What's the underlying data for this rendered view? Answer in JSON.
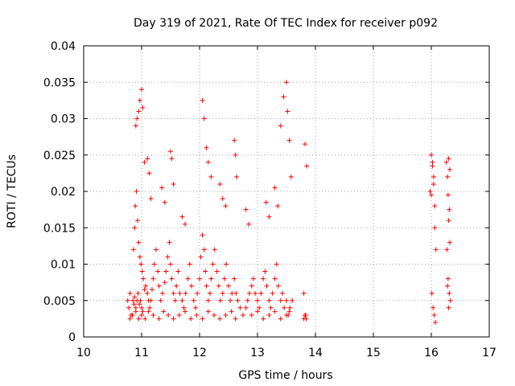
{
  "chart_data": {
    "type": "scatter",
    "title": "Day 319 of 2021, Rate Of TEC Index for receiver p092",
    "xlabel": "GPS time / hours",
    "ylabel": "ROTI / TECUs",
    "xlim": [
      10,
      17
    ],
    "ylim": [
      0,
      0.04
    ],
    "xticks": [
      "10",
      "11",
      "12",
      "13",
      "14",
      "15",
      "16",
      "17"
    ],
    "yticks": [
      "0",
      "0.005",
      "0.01",
      "0.015",
      "0.02",
      "0.025",
      "0.03",
      "0.035",
      "0.04"
    ],
    "grid": true,
    "marker": "+",
    "color": "#ff0000",
    "series": [
      {
        "name": "ROTI",
        "x": [
          10.76,
          10.78,
          10.8,
          10.82,
          10.85,
          10.87,
          10.88,
          10.9,
          10.92,
          10.94,
          10.96,
          10.98,
          11.0,
          11.02,
          10.86,
          10.88,
          10.89,
          10.91,
          10.93,
          10.95,
          10.97,
          10.99,
          11.01,
          11.03,
          11.05,
          11.07,
          11.1,
          11.12,
          11.14,
          11.16,
          11.18,
          11.2,
          11.22,
          11.25,
          11.28,
          11.3,
          11.33,
          11.36,
          11.4,
          11.42,
          11.45,
          11.48,
          11.5,
          11.52,
          11.55,
          11.58,
          11.6,
          11.63,
          11.66,
          11.7,
          11.73,
          11.76,
          11.8,
          11.83,
          11.86,
          11.9,
          11.93,
          11.96,
          12.0,
          12.02,
          12.05,
          12.08,
          12.1,
          12.12,
          12.15,
          12.18,
          12.2,
          12.23,
          12.26,
          12.3,
          12.33,
          12.36,
          12.4,
          12.43,
          12.46,
          12.5,
          12.53,
          12.56,
          12.6,
          12.63,
          12.66,
          12.7,
          12.75,
          12.8,
          12.83,
          12.86,
          12.9,
          12.93,
          12.96,
          13.0,
          13.03,
          13.06,
          13.1,
          13.13,
          13.16,
          13.2,
          13.23,
          13.26,
          13.3,
          13.33,
          13.36,
          13.4,
          13.43,
          13.46,
          13.5,
          13.53,
          13.56,
          13.6,
          13.8,
          13.82,
          13.84,
          10.8,
          10.84,
          10.9,
          10.95,
          11.0,
          11.06,
          11.12,
          11.2,
          11.3,
          11.38,
          11.46,
          11.55,
          11.65,
          11.75,
          11.85,
          11.95,
          12.05,
          12.15,
          12.25,
          12.35,
          12.45,
          12.55,
          12.62,
          12.9,
          13.0,
          13.1,
          13.2,
          13.3,
          13.4,
          13.5,
          13.55,
          13.8,
          13.83,
          15.98,
          16.0,
          16.02,
          16.04,
          16.06,
          16.08,
          16.01,
          16.03,
          16.05,
          16.07,
          16.26,
          16.28,
          16.3,
          16.32,
          16.27,
          16.29,
          16.31,
          16.33,
          16.3,
          16.28,
          10.9,
          10.92,
          10.95,
          10.97,
          11.0,
          11.02,
          11.05,
          12.05,
          12.08,
          12.12,
          12.15,
          12.2,
          13.4,
          13.45,
          13.5,
          13.52,
          13.55,
          13.58,
          11.5,
          11.52,
          11.55,
          12.6,
          12.62,
          12.64,
          16.02,
          16.04,
          16.3,
          16.32,
          11.1,
          11.13,
          11.16,
          12.35,
          12.4,
          12.45,
          13.3,
          13.35,
          13.82,
          13.85,
          13.2,
          13.15,
          11.7,
          11.75,
          12.8,
          12.85,
          11.35,
          11.4,
          16.0,
          16.06,
          16.29,
          16.31
        ],
        "y": [
          0.005,
          0.004,
          0.006,
          0.003,
          0.005,
          0.0045,
          0.0055,
          0.004,
          0.005,
          0.006,
          0.0045,
          0.005,
          0.004,
          0.0035,
          0.012,
          0.015,
          0.018,
          0.02,
          0.016,
          0.013,
          0.011,
          0.01,
          0.009,
          0.008,
          0.0065,
          0.007,
          0.006,
          0.005,
          0.004,
          0.005,
          0.0065,
          0.008,
          0.01,
          0.012,
          0.009,
          0.007,
          0.005,
          0.006,
          0.0075,
          0.009,
          0.011,
          0.013,
          0.01,
          0.008,
          0.006,
          0.005,
          0.007,
          0.009,
          0.006,
          0.005,
          0.004,
          0.006,
          0.008,
          0.01,
          0.007,
          0.005,
          0.004,
          0.006,
          0.008,
          0.011,
          0.014,
          0.012,
          0.009,
          0.007,
          0.005,
          0.006,
          0.008,
          0.01,
          0.012,
          0.009,
          0.007,
          0.005,
          0.006,
          0.008,
          0.01,
          0.007,
          0.005,
          0.006,
          0.008,
          0.006,
          0.005,
          0.004,
          0.003,
          0.004,
          0.005,
          0.006,
          0.007,
          0.008,
          0.006,
          0.005,
          0.004,
          0.006,
          0.008,
          0.009,
          0.007,
          0.005,
          0.004,
          0.006,
          0.008,
          0.01,
          0.007,
          0.005,
          0.006,
          0.004,
          0.005,
          0.003,
          0.004,
          0.005,
          0.006,
          0.003,
          0.0025,
          0.0025,
          0.003,
          0.0035,
          0.0025,
          0.003,
          0.0025,
          0.0035,
          0.003,
          0.0025,
          0.0035,
          0.003,
          0.0025,
          0.003,
          0.0035,
          0.0025,
          0.003,
          0.0025,
          0.0035,
          0.003,
          0.0025,
          0.003,
          0.0035,
          0.0025,
          0.003,
          0.0035,
          0.0025,
          0.003,
          0.0035,
          0.0025,
          0.003,
          0.0035,
          0.0025,
          0.003,
          0.02,
          0.025,
          0.024,
          0.022,
          0.015,
          0.012,
          0.006,
          0.004,
          0.003,
          0.002,
          0.024,
          0.022,
          0.016,
          0.013,
          0.012,
          0.008,
          0.006,
          0.005,
          0.004,
          0.007,
          0.029,
          0.03,
          0.031,
          0.0325,
          0.034,
          0.0315,
          0.024,
          0.0325,
          0.03,
          0.026,
          0.024,
          0.022,
          0.029,
          0.033,
          0.035,
          0.031,
          0.027,
          0.022,
          0.0255,
          0.0245,
          0.021,
          0.027,
          0.025,
          0.022,
          0.0235,
          0.021,
          0.0245,
          0.023,
          0.0245,
          0.0225,
          0.019,
          0.021,
          0.019,
          0.018,
          0.0205,
          0.018,
          0.0265,
          0.0235,
          0.0165,
          0.0185,
          0.0165,
          0.0155,
          0.0175,
          0.0155,
          0.0205,
          0.0185,
          0.0195,
          0.018,
          0.0195,
          0.0175
        ]
      }
    ]
  }
}
